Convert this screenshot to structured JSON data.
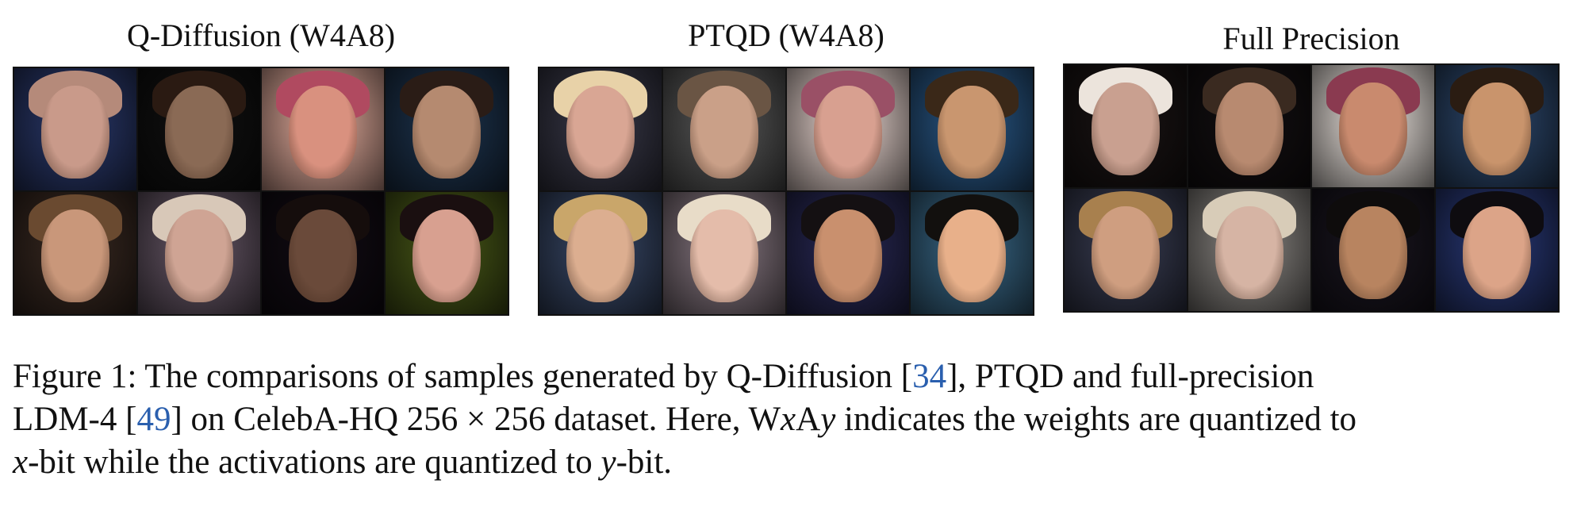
{
  "panels": [
    {
      "title": "Q-Diffusion (W4A8)",
      "tiles": [
        {
          "bg": "#2b3a6e",
          "skin": "#c99a8a",
          "hair": "#b58a7a"
        },
        {
          "bg": "#111111",
          "skin": "#8a6a55",
          "hair": "#2a1a12"
        },
        {
          "bg": "#e8b0a0",
          "skin": "#d9917f",
          "hair": "#b04a60"
        },
        {
          "bg": "#1e3550",
          "skin": "#b58a70",
          "hair": "#2a1c16"
        },
        {
          "bg": "#3a2a22",
          "skin": "#c9977a",
          "hair": "#6a4a30"
        },
        {
          "bg": "#6a5a6a",
          "skin": "#cfa494",
          "hair": "#d8c8b8"
        },
        {
          "bg": "#120c14",
          "skin": "#6a4a3a",
          "hair": "#150d0c"
        },
        {
          "bg": "#4a5a18",
          "skin": "#d8a090",
          "hair": "#1a0f10"
        }
      ]
    },
    {
      "title": "PTQD (W4A8)",
      "tiles": [
        {
          "bg": "#3a3a4a",
          "skin": "#d9a694",
          "hair": "#e8d2a8"
        },
        {
          "bg": "#5a5a5a",
          "skin": "#caa088",
          "hair": "#6a5544"
        },
        {
          "bg": "#f0dcd6",
          "skin": "#d8a090",
          "hair": "#9a5066"
        },
        {
          "bg": "#2a5a8a",
          "skin": "#c9966f",
          "hair": "#3a2818"
        },
        {
          "bg": "#3a4a6a",
          "skin": "#dcae90",
          "hair": "#c9a66a"
        },
        {
          "bg": "#8a7a84",
          "skin": "#e4bcaa",
          "hair": "#e8dcc8"
        },
        {
          "bg": "#2a2a58",
          "skin": "#c9906e",
          "hair": "#141012"
        },
        {
          "bg": "#3a6a8a",
          "skin": "#e8b08a",
          "hair": "#12100e"
        }
      ]
    },
    {
      "title": "Full Precision",
      "tiles": [
        {
          "bg": "#1a1414",
          "skin": "#c9a090",
          "hair": "#ece4dc"
        },
        {
          "bg": "#141012",
          "skin": "#b88a70",
          "hair": "#3a2a20"
        },
        {
          "bg": "#f4ece6",
          "skin": "#c98a6e",
          "hair": "#8a3a50"
        },
        {
          "bg": "#2e4a70",
          "skin": "#c9946c",
          "hair": "#2a1c12"
        },
        {
          "bg": "#3a3e54",
          "skin": "#cf9e80",
          "hair": "#a8804e"
        },
        {
          "bg": "#8e8a86",
          "skin": "#d6b4a4",
          "hair": "#d8ccb8"
        },
        {
          "bg": "#1a1620",
          "skin": "#b88460",
          "hair": "#0e0c0c"
        },
        {
          "bg": "#2a3a7a",
          "skin": "#dca488",
          "hair": "#0e0c10"
        }
      ]
    }
  ],
  "caption": {
    "l1_a": "Figure 1: The comparisons of samples generated by Q-Diffusion [",
    "l1_ref": "34",
    "l1_b": "], PTQD and full-precision",
    "l2_a": "LDM-4 [",
    "l2_ref": "49",
    "l2_b": "] on CelebA-HQ 256 × 256 dataset. Here, W",
    "l2_x": "x",
    "l2_c": "A",
    "l2_y": "y",
    "l2_d": " indicates the weights are quantized to",
    "l3_x": "x",
    "l3_a": "-bit while the activations are quantized to ",
    "l3_y": "y",
    "l3_b": "-bit."
  }
}
